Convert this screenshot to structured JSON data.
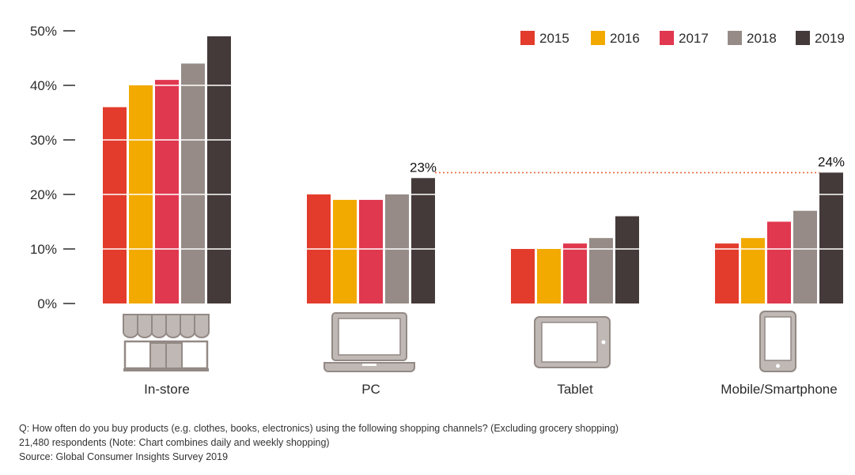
{
  "chart_data": {
    "type": "bar",
    "categories": [
      "In-store",
      "PC",
      "Tablet",
      "Mobile/Smartphone"
    ],
    "series": [
      {
        "name": "2015",
        "values": [
          36,
          20,
          10,
          11
        ]
      },
      {
        "name": "2016",
        "values": [
          40,
          19,
          10,
          12
        ]
      },
      {
        "name": "2017",
        "values": [
          41,
          19,
          11,
          15
        ]
      },
      {
        "name": "2018",
        "values": [
          44,
          20,
          12,
          17
        ]
      },
      {
        "name": "2019",
        "values": [
          49,
          23,
          16,
          24
        ]
      }
    ],
    "ylim": [
      0,
      50
    ],
    "yticks": [
      0,
      10,
      20,
      30,
      40,
      50
    ],
    "ytick_format": "%",
    "legend_position": "top-right",
    "grid": false,
    "annotations": [
      {
        "category": "PC",
        "series": "2019",
        "label": "23%"
      },
      {
        "category": "Mobile/Smartphone",
        "series": "2019",
        "label": "24%"
      }
    ],
    "category_icons": [
      "storefront-icon",
      "laptop-icon",
      "tablet-icon",
      "smartphone-icon"
    ]
  },
  "colors": {
    "2015": "#e33c2c",
    "2016": "#f2a900",
    "2017": "#e0384f",
    "2018": "#968b87",
    "2019": "#443a39",
    "icon_fill": "#bfb8b5",
    "icon_stroke": "#938985",
    "reference_line": "#e86a3a"
  },
  "notes": {
    "question": "Q: How often do you buy products (e.g. clothes, books, electronics) using the following shopping channels? (Excluding grocery shopping)",
    "respondents": "21,480 respondents (Note: Chart combines daily and weekly shopping)",
    "source": "Source: Global Consumer Insights Survey 2019"
  }
}
